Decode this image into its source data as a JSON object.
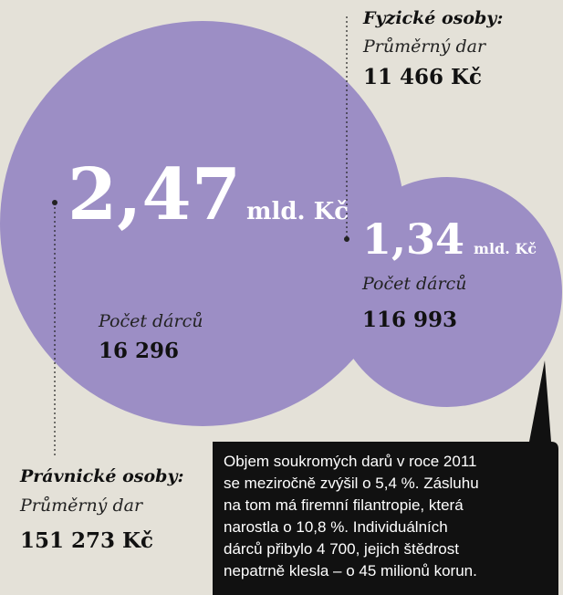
{
  "individuals": {
    "title": "Fyzické osoby:",
    "avg_label": "Průměrný dar",
    "avg_value": "11 466 Kč",
    "total": "1,34",
    "unit": "mld. Kč",
    "count_label": "Počet dárců",
    "count_value": "116 993"
  },
  "corporate": {
    "title": "Právnické osoby:",
    "avg_label": "Průměrný dar",
    "avg_value": "151 273 Kč",
    "total": "2,47",
    "unit": "mld. Kč",
    "count_label": "Počet dárců",
    "count_value": "16 296"
  },
  "note": [
    "Objem soukromých darů v roce 2011",
    "se meziročně zvýšil o 5,4 %. Zásluhu",
    "na tom má firemní filantropie, která",
    "narostla o 10,8 %. Individuálních",
    "dárců přibylo 4 700, jejich štědrost",
    "nepatrně klesla – o 45 milionů korun."
  ]
}
